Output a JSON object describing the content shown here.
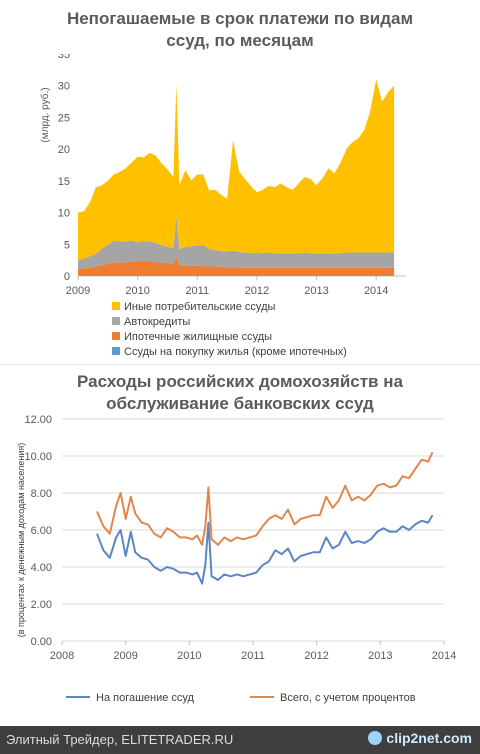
{
  "chart_data": [
    {
      "type": "area",
      "stacked": true,
      "title_lines": [
        "Непогашаемые в срок платежи по видам",
        "ссуд, по месяцам"
      ],
      "ylabel": "(млрд. руб.)",
      "ylim": [
        0,
        35
      ],
      "yticks": [
        "0",
        "5",
        "10",
        "15",
        "20",
        "25",
        "30",
        "35"
      ],
      "xlim": [
        2009,
        2014.5
      ],
      "xticks": [
        "2009",
        "2010",
        "2011",
        "2012",
        "2013",
        "2014"
      ],
      "x": [
        2009.0,
        2009.1,
        2009.2,
        2009.3,
        2009.4,
        2009.5,
        2009.6,
        2009.7,
        2009.8,
        2009.9,
        2010.0,
        2010.1,
        2010.2,
        2010.3,
        2010.4,
        2010.5,
        2010.6,
        2010.65,
        2010.7,
        2010.8,
        2010.9,
        2011.0,
        2011.1,
        2011.2,
        2011.3,
        2011.4,
        2011.5,
        2011.6,
        2011.7,
        2011.8,
        2011.9,
        2012.0,
        2012.1,
        2012.2,
        2012.3,
        2012.4,
        2012.5,
        2012.6,
        2012.7,
        2012.8,
        2012.9,
        2013.0,
        2013.1,
        2013.2,
        2013.3,
        2013.4,
        2013.5,
        2013.6,
        2013.7,
        2013.8,
        2013.9,
        2014.0,
        2014.1,
        2014.2,
        2014.3
      ],
      "series": [
        {
          "name": "Ссуды на покупку жилья (кроме ипотечных)",
          "color": "#5b9bd5",
          "values": [
            0.1,
            0.1,
            0.1,
            0.1,
            0.1,
            0.1,
            0.1,
            0.1,
            0.1,
            0.1,
            0.1,
            0.1,
            0.1,
            0.1,
            0.1,
            0.1,
            0.1,
            0.1,
            0.1,
            0.1,
            0.1,
            0.1,
            0.1,
            0.1,
            0.1,
            0.1,
            0.1,
            0.1,
            0.1,
            0.1,
            0.1,
            0.1,
            0.1,
            0.1,
            0.1,
            0.1,
            0.1,
            0.1,
            0.1,
            0.1,
            0.1,
            0.1,
            0.1,
            0.1,
            0.1,
            0.1,
            0.1,
            0.1,
            0.1,
            0.1,
            0.1,
            0.1,
            0.1,
            0.1,
            0.1
          ]
        },
        {
          "name": "Ипотечные жилищные ссуды",
          "color": "#ed7d31",
          "values": [
            1.0,
            1.1,
            1.2,
            1.4,
            1.6,
            1.8,
            2.0,
            2.1,
            2.0,
            2.2,
            2.2,
            2.3,
            2.2,
            2.1,
            2.0,
            1.9,
            1.7,
            3.0,
            1.6,
            1.6,
            1.5,
            1.5,
            1.4,
            1.4,
            1.4,
            1.3,
            1.3,
            1.3,
            1.2,
            1.2,
            1.2,
            1.2,
            1.2,
            1.2,
            1.2,
            1.2,
            1.2,
            1.2,
            1.2,
            1.2,
            1.2,
            1.2,
            1.2,
            1.2,
            1.2,
            1.2,
            1.2,
            1.2,
            1.2,
            1.2,
            1.2,
            1.2,
            1.2,
            1.2,
            1.2
          ]
        },
        {
          "name": "Автокредиты",
          "color": "#a5a5a5",
          "values": [
            1.4,
            1.5,
            1.8,
            2.0,
            2.6,
            3.0,
            3.5,
            3.2,
            3.4,
            3.3,
            3.0,
            3.1,
            3.2,
            3.0,
            2.8,
            2.6,
            2.6,
            6.5,
            2.5,
            2.9,
            3.1,
            3.2,
            3.4,
            2.8,
            2.6,
            2.5,
            2.5,
            2.6,
            2.5,
            2.4,
            2.3,
            2.4,
            2.3,
            2.4,
            2.3,
            2.3,
            2.3,
            2.3,
            2.3,
            2.4,
            2.3,
            2.3,
            2.3,
            2.3,
            2.3,
            2.3,
            2.4,
            2.4,
            2.4,
            2.4,
            2.4,
            2.4,
            2.4,
            2.4,
            2.4
          ]
        },
        {
          "name": "Иные потребительские ссуды",
          "color": "#ffc000",
          "values": [
            7.5,
            7.5,
            8.5,
            10.5,
            10.0,
            10.1,
            10.4,
            11.0,
            11.5,
            12.3,
            13.5,
            13.2,
            13.9,
            13.8,
            12.9,
            12.2,
            11.2,
            20.7,
            10.1,
            12.1,
            10.4,
            11.2,
            11.1,
            9.2,
            9.5,
            8.9,
            8.3,
            17.4,
            12.7,
            11.6,
            10.6,
            9.5,
            10.0,
            10.5,
            10.4,
            11.0,
            10.4,
            10.0,
            11.0,
            11.9,
            11.7,
            10.7,
            11.8,
            13.4,
            12.6,
            14.2,
            16.3,
            17.4,
            18.0,
            19.3,
            22.3,
            27.3,
            23.8,
            25.3,
            26.3
          ]
        }
      ]
    },
    {
      "type": "line",
      "title_lines": [
        "Расходы российских домохозяйств на",
        "обслуживание банковских ссуд"
      ],
      "ylabel": "(в процентах к денежным доходам населения)",
      "ylim": [
        0,
        12
      ],
      "yticks": [
        "0.00",
        "2.00",
        "4.00",
        "6.00",
        "8.00",
        "10.00",
        "12.00"
      ],
      "xlim": [
        2008,
        2014
      ],
      "xticks": [
        "2008",
        "2009",
        "2010",
        "2011",
        "2012",
        "2013",
        "2014"
      ],
      "series": [
        {
          "name": "На погашение ссуд",
          "color": "#5b86c5",
          "x": [
            2008.55,
            2008.65,
            2008.75,
            2008.85,
            2008.92,
            2009.0,
            2009.08,
            2009.15,
            2009.25,
            2009.35,
            2009.45,
            2009.55,
            2009.65,
            2009.75,
            2009.85,
            2009.95,
            2010.05,
            2010.12,
            2010.2,
            2010.25,
            2010.3,
            2010.35,
            2010.45,
            2010.55,
            2010.65,
            2010.75,
            2010.85,
            2010.95,
            2011.05,
            2011.15,
            2011.25,
            2011.35,
            2011.45,
            2011.55,
            2011.65,
            2011.75,
            2011.85,
            2011.95,
            2012.05,
            2012.15,
            2012.25,
            2012.35,
            2012.45,
            2012.55,
            2012.65,
            2012.75,
            2012.85,
            2012.95,
            2013.05,
            2013.15,
            2013.25,
            2013.35,
            2013.45,
            2013.55,
            2013.65,
            2013.75,
            2013.82
          ],
          "values": [
            5.8,
            4.9,
            4.5,
            5.6,
            6.0,
            4.6,
            5.9,
            4.8,
            4.5,
            4.4,
            4.0,
            3.8,
            4.0,
            3.9,
            3.7,
            3.7,
            3.6,
            3.7,
            3.1,
            4.1,
            6.4,
            3.5,
            3.3,
            3.6,
            3.5,
            3.6,
            3.5,
            3.6,
            3.7,
            4.1,
            4.3,
            4.9,
            4.7,
            5.0,
            4.3,
            4.6,
            4.7,
            4.8,
            4.8,
            5.6,
            5.0,
            5.2,
            5.9,
            5.3,
            5.4,
            5.3,
            5.5,
            5.9,
            6.1,
            5.9,
            5.9,
            6.2,
            6.0,
            6.3,
            6.5,
            6.4,
            6.8
          ]
        },
        {
          "name": "Всего, с учетом процентов",
          "color": "#e0874e",
          "x": [
            2008.55,
            2008.65,
            2008.75,
            2008.85,
            2008.92,
            2009.0,
            2009.08,
            2009.15,
            2009.25,
            2009.35,
            2009.45,
            2009.55,
            2009.65,
            2009.75,
            2009.85,
            2009.95,
            2010.05,
            2010.12,
            2010.2,
            2010.25,
            2010.3,
            2010.35,
            2010.45,
            2010.55,
            2010.65,
            2010.75,
            2010.85,
            2010.95,
            2011.05,
            2011.15,
            2011.25,
            2011.35,
            2011.45,
            2011.55,
            2011.65,
            2011.75,
            2011.85,
            2011.95,
            2012.05,
            2012.15,
            2012.25,
            2012.35,
            2012.45,
            2012.55,
            2012.65,
            2012.75,
            2012.85,
            2012.95,
            2013.05,
            2013.15,
            2013.25,
            2013.35,
            2013.45,
            2013.55,
            2013.65,
            2013.75,
            2013.82
          ],
          "values": [
            7.0,
            6.2,
            5.8,
            7.3,
            8.0,
            6.6,
            7.8,
            6.9,
            6.4,
            6.3,
            5.8,
            5.6,
            6.1,
            5.9,
            5.6,
            5.6,
            5.5,
            5.7,
            5.2,
            6.2,
            8.3,
            5.5,
            5.2,
            5.6,
            5.4,
            5.6,
            5.5,
            5.6,
            5.7,
            6.2,
            6.6,
            6.8,
            6.6,
            7.1,
            6.3,
            6.6,
            6.7,
            6.8,
            6.8,
            7.8,
            7.2,
            7.6,
            8.4,
            7.6,
            7.8,
            7.6,
            7.9,
            8.4,
            8.5,
            8.3,
            8.4,
            8.9,
            8.8,
            9.3,
            9.8,
            9.7,
            10.2
          ]
        }
      ]
    }
  ],
  "footer": {
    "left": "Элитный Трейдер, ELITETRADER.RU",
    "right": "clip2net.com"
  }
}
